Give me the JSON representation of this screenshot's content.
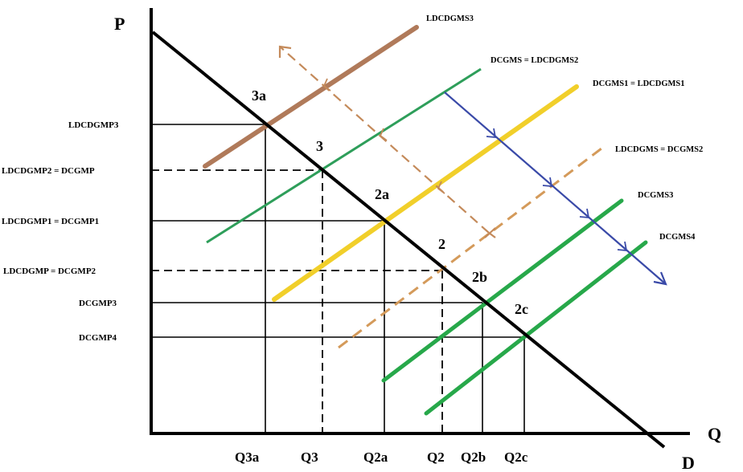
{
  "axes": {
    "y_label": "P",
    "x_label": "Q",
    "demand_label": "D"
  },
  "price_labels": {
    "p3": "LDCDGMP3",
    "p2": "LDCDGMP2 = DCGMP",
    "p1": "LDCDGMP1 = DCGMP1",
    "p0": "LDCDGMP = DCGMP2",
    "p_b": "DCGMP3",
    "p_c": "DCGMP4"
  },
  "quantity_labels": {
    "q3a": "Q3a",
    "q3": "Q3",
    "q2a": "Q2a",
    "q2": "Q2",
    "q2b": "Q2b",
    "q2c": "Q2c"
  },
  "point_labels": {
    "e3a": "3a",
    "e3": "3",
    "e2a": "2a",
    "e2": "2",
    "e2b": "2b",
    "e2c": "2c"
  },
  "supply_labels": {
    "ldcdgms3": "LDCDGMS3",
    "dcgms": "DCGMS = LDCDGMS2",
    "dcgms1": "DCGMS1 = LDCDGMS1",
    "ldcdgms": "LDCDGMS = DCGMS2",
    "dcgms3": "DCGMS3",
    "dcgms4": "DCGMS4"
  },
  "colors": {
    "demand": "#000000",
    "ldcdgms3": "#b07a5a",
    "dcgms": "#2e9e5a",
    "dcgms1": "#f1cf2a",
    "ldcdgms": "#d49a5a",
    "dcgms3": "#27a84a",
    "dcgms4": "#27a84a",
    "shift_arrow_blue": "#3a4aa8",
    "shift_arrow_tan": "#c48a5a"
  }
}
